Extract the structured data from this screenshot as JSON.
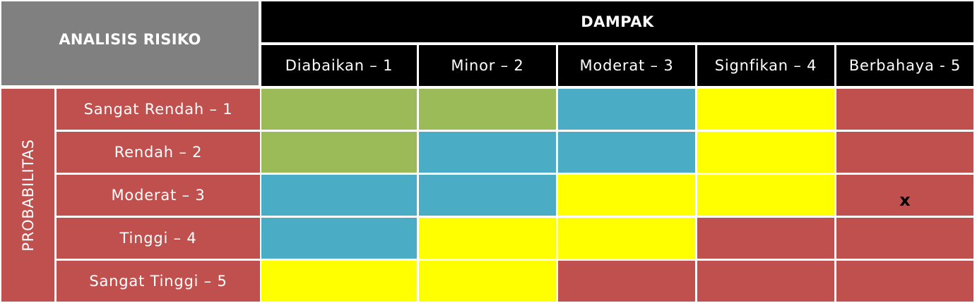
{
  "corner_label": "ANALISIS RISIKO",
  "impact_title": "DAMPAK",
  "impact_levels": [
    "Diabaikan – 1",
    "Minor – 2",
    "Moderat – 3",
    "Signfikan – 4",
    "Berbahaya - 5"
  ],
  "probability_title": "PROBABILITAS",
  "probability_levels": [
    "Sangat Rendah – 1",
    "Rendah – 2",
    "Moderat – 3",
    "Tinggi – 4",
    "Sangat Tinggi – 5"
  ],
  "colors": {
    "green": "#9bbb59",
    "blue": "#4bacc6",
    "yellow": "#ffff00",
    "red": "#c0504d",
    "header_black": "#000000",
    "header_gray": "#808080"
  },
  "matrix": [
    [
      "green",
      "green",
      "blue",
      "yellow",
      "red"
    ],
    [
      "green",
      "blue",
      "blue",
      "yellow",
      "red"
    ],
    [
      "blue",
      "blue",
      "yellow",
      "yellow",
      "red"
    ],
    [
      "blue",
      "yellow",
      "yellow",
      "red",
      "red"
    ],
    [
      "yellow",
      "yellow",
      "red",
      "red",
      "red"
    ]
  ],
  "marks": [
    [
      "",
      "",
      "",
      "",
      ""
    ],
    [
      "",
      "",
      "",
      "",
      ""
    ],
    [
      "",
      "",
      "",
      "",
      "x"
    ],
    [
      "",
      "",
      "",
      "",
      ""
    ],
    [
      "",
      "",
      "",
      "",
      ""
    ]
  ]
}
